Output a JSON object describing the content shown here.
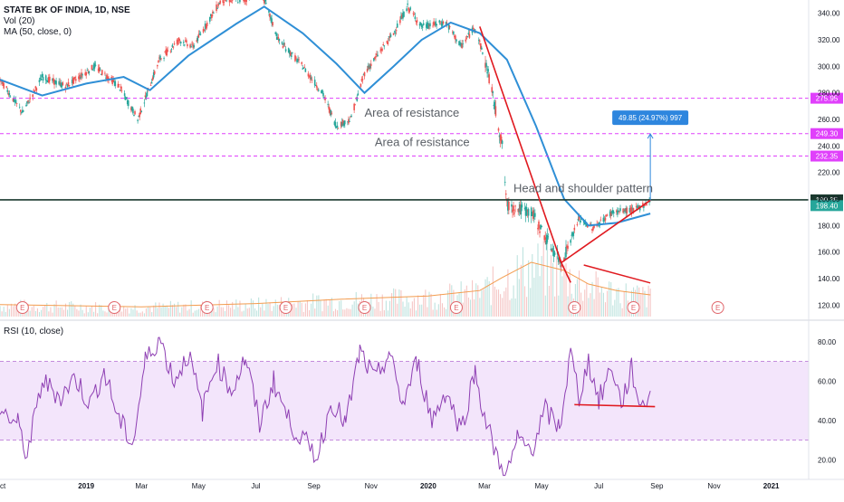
{
  "legend": {
    "title": "STATE BK OF INDIA, 1D, NSE",
    "volume": "Vol (20)",
    "ma": "MA (50, close, 0)",
    "rsi": "RSI (10, close)"
  },
  "colors": {
    "up": "#26a69a",
    "down": "#ef5350",
    "ma": "#2f8fd6",
    "volume_ma": "#f39c4f",
    "trend": "#e0191f",
    "level_line": "#e040fb",
    "horizontal": "#1b3a2f",
    "rsi": "#8e3fb3",
    "rsi_band": "#f3e5fb",
    "badge_pink": "#e040fb",
    "badge_dark": "#1b3a2f",
    "badge_green": "#26a69a",
    "badge_blue": "#2e86de",
    "earnings": "#e0666b"
  },
  "chart_data": [
    {
      "type": "candlestick",
      "title": "STATE BK OF INDIA, 1D, NSE",
      "x_range": [
        "2018-10-01",
        "2021-02-10"
      ],
      "ylim": [
        110,
        350
      ],
      "y_ticks": [
        120,
        140,
        160,
        180,
        200,
        220,
        240,
        260,
        280,
        300,
        320,
        340
      ],
      "y_tick_labels": [
        "120.00",
        "140.00",
        "160.00",
        "180.00",
        "200.00",
        "220.00",
        "240.00",
        "260.00",
        "280.00",
        "300.00",
        "320.00",
        "340.00"
      ],
      "x_tick_labels": [
        {
          "label": "Oct",
          "date": "2018-10-01"
        },
        {
          "label": "2019",
          "date": "2019-01-01"
        },
        {
          "label": "Mar",
          "date": "2019-03-01"
        },
        {
          "label": "May",
          "date": "2019-05-01"
        },
        {
          "label": "Jul",
          "date": "2019-07-01"
        },
        {
          "label": "Sep",
          "date": "2019-09-01"
        },
        {
          "label": "Nov",
          "date": "2019-11-01"
        },
        {
          "label": "2020",
          "date": "2020-01-01"
        },
        {
          "label": "Mar",
          "date": "2020-03-01"
        },
        {
          "label": "May",
          "date": "2020-05-01"
        },
        {
          "label": "Jul",
          "date": "2020-07-01"
        },
        {
          "label": "Sep",
          "date": "2020-09-01"
        },
        {
          "label": "Nov",
          "date": "2020-11-01"
        },
        {
          "label": "2021",
          "date": "2021-01-01"
        }
      ],
      "price_path": [
        [
          "2018-10-01",
          290
        ],
        [
          "2018-10-25",
          265
        ],
        [
          "2018-11-15",
          292
        ],
        [
          "2018-12-10",
          285
        ],
        [
          "2019-01-10",
          300
        ],
        [
          "2019-02-05",
          285
        ],
        [
          "2019-02-25",
          260
        ],
        [
          "2019-03-20",
          305
        ],
        [
          "2019-04-10",
          320
        ],
        [
          "2019-04-25",
          315
        ],
        [
          "2019-05-25",
          350
        ],
        [
          "2019-06-20",
          350
        ],
        [
          "2019-07-05",
          360
        ],
        [
          "2019-07-25",
          320
        ],
        [
          "2019-08-20",
          300
        ],
        [
          "2019-09-10",
          280
        ],
        [
          "2019-09-25",
          255
        ],
        [
          "2019-10-10",
          260
        ],
        [
          "2019-10-25",
          295
        ],
        [
          "2019-11-25",
          325
        ],
        [
          "2019-12-10",
          345
        ],
        [
          "2019-12-25",
          330
        ],
        [
          "2020-01-20",
          333
        ],
        [
          "2020-02-05",
          315
        ],
        [
          "2020-02-20",
          330
        ],
        [
          "2020-03-05",
          295
        ],
        [
          "2020-03-20",
          240
        ],
        [
          "2020-03-25",
          195
        ],
        [
          "2020-04-20",
          190
        ],
        [
          "2020-05-10",
          165
        ],
        [
          "2020-05-22",
          152
        ],
        [
          "2020-06-10",
          185
        ],
        [
          "2020-06-25",
          178
        ],
        [
          "2020-07-15",
          190
        ],
        [
          "2020-08-10",
          192
        ],
        [
          "2020-08-25",
          199
        ]
      ],
      "ma50_path": [
        [
          "2018-10-01",
          290
        ],
        [
          "2018-11-15",
          278
        ],
        [
          "2019-01-01",
          287
        ],
        [
          "2019-02-10",
          292
        ],
        [
          "2019-03-10",
          282
        ],
        [
          "2019-04-20",
          308
        ],
        [
          "2019-06-10",
          332
        ],
        [
          "2019-07-10",
          345
        ],
        [
          "2019-08-20",
          325
        ],
        [
          "2019-09-25",
          302
        ],
        [
          "2019-10-25",
          280
        ],
        [
          "2019-11-25",
          300
        ],
        [
          "2019-12-25",
          320
        ],
        [
          "2020-01-25",
          333
        ],
        [
          "2020-02-25",
          325
        ],
        [
          "2020-03-25",
          305
        ],
        [
          "2020-04-25",
          255
        ],
        [
          "2020-05-25",
          200
        ],
        [
          "2020-06-20",
          180
        ],
        [
          "2020-07-20",
          182
        ],
        [
          "2020-08-25",
          189
        ]
      ],
      "horizontal_levels": [
        {
          "value": 275.95,
          "label": "275.95",
          "style": "dashed"
        },
        {
          "value": 249.3,
          "label": "249.30",
          "style": "dashed"
        },
        {
          "value": 232.35,
          "label": "232.35",
          "style": "dashed"
        },
        {
          "value": 199.35,
          "label": "199.35",
          "style": "solid"
        }
      ],
      "last_price": {
        "value": 198.4,
        "label": "198.40"
      },
      "measure": {
        "label": "49.85 (24.97%) 997",
        "from": [
          "2020-08-25",
          199
        ],
        "to": [
          "2020-08-25",
          249
        ]
      },
      "trend_lines": [
        {
          "from": [
            "2020-02-25",
            330
          ],
          "to": [
            "2020-05-22",
            152
          ]
        },
        {
          "from": [
            "2020-05-22",
            152
          ],
          "to": [
            "2020-08-25",
            199
          ]
        },
        {
          "from": [
            "2020-05-20",
            155
          ],
          "to": [
            "2020-06-01",
            137
          ]
        }
      ],
      "annotations": [
        {
          "text": "Area of  resistance",
          "at": [
            "2019-10-25",
            262
          ]
        },
        {
          "text": "Area of  resistance",
          "at": [
            "2019-11-05",
            240
          ]
        },
        {
          "text": "Head and shoulder pattern",
          "at": [
            "2020-04-01",
            205
          ]
        }
      ],
      "volume": {
        "label": "Vol (20)",
        "ma_path": [
          [
            "2018-10-01",
            0.22
          ],
          [
            "2019-03-01",
            0.18
          ],
          [
            "2019-07-01",
            0.24
          ],
          [
            "2019-10-01",
            0.32
          ],
          [
            "2020-01-01",
            0.38
          ],
          [
            "2020-02-25",
            0.48
          ],
          [
            "2020-03-20",
            0.72
          ],
          [
            "2020-04-20",
            1.0
          ],
          [
            "2020-05-25",
            0.85
          ],
          [
            "2020-06-20",
            0.6
          ],
          [
            "2020-07-20",
            0.48
          ],
          [
            "2020-08-25",
            0.4
          ]
        ],
        "trend_line": {
          "from": [
            "2020-06-15",
            0.95
          ],
          "to": [
            "2020-08-25",
            0.62
          ]
        }
      },
      "earnings_markers": {
        "label": "E",
        "dates": [
          "2018-10-25",
          "2019-01-31",
          "2019-05-10",
          "2019-08-02",
          "2019-10-25",
          "2020-01-31",
          "2020-06-05",
          "2020-08-07",
          "2020-11-05"
        ]
      }
    },
    {
      "type": "line",
      "title": "RSI (10, close)",
      "x_range": [
        "2018-10-01",
        "2021-02-10"
      ],
      "ylim": [
        10,
        90
      ],
      "y_ticks": [
        20,
        40,
        60,
        80
      ],
      "y_tick_labels": [
        "20.00",
        "40.00",
        "60.00",
        "80.00"
      ],
      "band": [
        30,
        70
      ],
      "series": [
        {
          "values": [
            [
              "2018-10-01",
              45
            ],
            [
              "2018-10-20",
              38
            ],
            [
              "2018-10-30",
              22
            ],
            [
              "2018-11-15",
              60
            ],
            [
              "2018-12-05",
              52
            ],
            [
              "2018-12-20",
              62
            ],
            [
              "2019-01-05",
              48
            ],
            [
              "2019-01-20",
              65
            ],
            [
              "2019-02-05",
              40
            ],
            [
              "2019-02-20",
              28
            ],
            [
              "2019-03-05",
              70
            ],
            [
              "2019-03-20",
              82
            ],
            [
              "2019-04-05",
              60
            ],
            [
              "2019-04-20",
              74
            ],
            [
              "2019-05-05",
              45
            ],
            [
              "2019-05-20",
              70
            ],
            [
              "2019-06-05",
              55
            ],
            [
              "2019-06-20",
              72
            ],
            [
              "2019-07-05",
              38
            ],
            [
              "2019-07-20",
              60
            ],
            [
              "2019-08-05",
              40
            ],
            [
              "2019-08-20",
              30
            ],
            [
              "2019-09-05",
              22
            ],
            [
              "2019-09-20",
              50
            ],
            [
              "2019-10-05",
              38
            ],
            [
              "2019-10-20",
              75
            ],
            [
              "2019-11-05",
              60
            ],
            [
              "2019-11-20",
              74
            ],
            [
              "2019-12-05",
              48
            ],
            [
              "2019-12-20",
              70
            ],
            [
              "2020-01-05",
              40
            ],
            [
              "2020-01-20",
              55
            ],
            [
              "2020-02-05",
              35
            ],
            [
              "2020-02-20",
              65
            ],
            [
              "2020-03-01",
              42
            ],
            [
              "2020-03-15",
              20
            ],
            [
              "2020-03-25",
              12
            ],
            [
              "2020-04-05",
              30
            ],
            [
              "2020-04-20",
              25
            ],
            [
              "2020-05-05",
              45
            ],
            [
              "2020-05-20",
              36
            ],
            [
              "2020-06-01",
              74
            ],
            [
              "2020-06-10",
              52
            ],
            [
              "2020-06-20",
              70
            ],
            [
              "2020-07-01",
              50
            ],
            [
              "2020-07-15",
              68
            ],
            [
              "2020-07-25",
              48
            ],
            [
              "2020-08-05",
              66
            ],
            [
              "2020-08-15",
              46
            ],
            [
              "2020-08-25",
              55
            ]
          ]
        }
      ],
      "trend_line": {
        "from": [
          "2020-06-05",
          48
        ],
        "to": [
          "2020-08-30",
          47
        ]
      }
    }
  ]
}
